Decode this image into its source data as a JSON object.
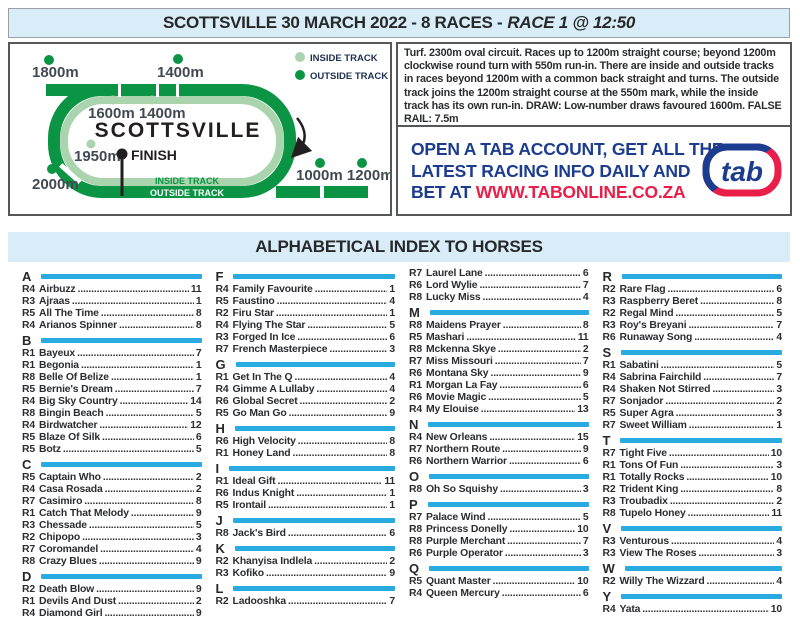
{
  "header": {
    "title_main": "SCOTTSVILLE 30 MARCH 2022 - 8 RACES -",
    "title_race": "RACE 1 @ 12:50"
  },
  "track": {
    "name": "SCOTTSVILLE",
    "legend": {
      "inside": "INSIDE TRACK",
      "outside": "OUTSIDE TRACK"
    },
    "labels": {
      "m1800": "1800m",
      "m1400_top": "1400m",
      "inner_pair": "1600m 1400m",
      "m1950": "1950m",
      "finish": "FINISH",
      "m2000": "2000m",
      "bottom_pair": "1000m 1200m",
      "band_inside": "INSIDE TRACK",
      "band_outside": "OUTSIDE TRACK"
    },
    "colors": {
      "dark_green": "#0b9444",
      "light_green": "#aad4ae"
    }
  },
  "course_info": "Turf. 2300m oval circuit. Races up to 1200m straight course; beyond 1200m clockwise round turn with 550m run-in. There are inside and outside tracks in races beyond 1200m with a common back straight and turns. The outside track joins the 1200m straight course at the 550m mark, while the inside track has its own run-in. DRAW: Low-number draws favoured 1600m. FALSE RAIL: 7.5m",
  "ad": {
    "line1": "OPEN A TAB ACCOUNT, GET ALL THE",
    "line2": "LATEST RACING INFO DAILY AND",
    "line3_prefix": "BET AT ",
    "line3_url": "WWW.TABONLINE.CO.ZA",
    "logo_text": "tab",
    "navy": "#1b3c8f",
    "red": "#e91f49"
  },
  "index": {
    "title": "ALPHABETICAL INDEX TO HORSES",
    "bar_color": "#29abe2",
    "columns": [
      [
        {
          "letter": "A",
          "entries": [
            [
              "R4",
              "Airbuzz",
              "11"
            ],
            [
              "R3",
              "Ajraas",
              "1"
            ],
            [
              "R5",
              "All The Time",
              "8"
            ],
            [
              "R4",
              "Arianos Spinner",
              "8"
            ]
          ]
        },
        {
          "letter": "B",
          "entries": [
            [
              "R1",
              "Bayeux",
              "7"
            ],
            [
              "R1",
              "Begonia",
              "1"
            ],
            [
              "R8",
              "Belle Of Belize",
              "1"
            ],
            [
              "R5",
              "Bernie's Dream",
              "7"
            ],
            [
              "R4",
              "Big Sky Country",
              "14"
            ],
            [
              "R8",
              "Bingin Beach",
              "5"
            ],
            [
              "R4",
              "Birdwatcher",
              "12"
            ],
            [
              "R5",
              "Blaze Of Silk",
              "6"
            ],
            [
              "R5",
              "Botz",
              "5"
            ]
          ]
        },
        {
          "letter": "C",
          "entries": [
            [
              "R5",
              "Captain Who",
              "2"
            ],
            [
              "R4",
              "Casa Rosada",
              "2"
            ],
            [
              "R7",
              "Casimiro",
              "8"
            ],
            [
              "R1",
              "Catch That Melody",
              "9"
            ],
            [
              "R3",
              "Chessade",
              "5"
            ],
            [
              "R2",
              "Chipopo",
              "3"
            ],
            [
              "R7",
              "Coromandel",
              "4"
            ],
            [
              "R8",
              "Crazy Blues",
              "9"
            ]
          ]
        },
        {
          "letter": "D",
          "entries": [
            [
              "R2",
              "Death Blow",
              "9"
            ],
            [
              "R1",
              "Devils And Dust",
              "2"
            ],
            [
              "R4",
              "Diamond Girl",
              "9"
            ]
          ]
        }
      ],
      [
        {
          "letter": "F",
          "entries": [
            [
              "R4",
              "Family Favourite",
              "1"
            ],
            [
              "R5",
              "Faustino",
              "4"
            ],
            [
              "R2",
              "Firu Star",
              "1"
            ],
            [
              "R4",
              "Flying The Star",
              "5"
            ],
            [
              "R3",
              "Forged In Ice",
              "6"
            ],
            [
              "R7",
              "French Masterpiece",
              "3"
            ]
          ]
        },
        {
          "letter": "G",
          "entries": [
            [
              "R1",
              "Get In The Q",
              "4"
            ],
            [
              "R4",
              "Gimme A Lullaby",
              "4"
            ],
            [
              "R6",
              "Global Secret",
              "2"
            ],
            [
              "R5",
              "Go Man Go",
              "9"
            ]
          ]
        },
        {
          "letter": "H",
          "entries": [
            [
              "R6",
              "High Velocity",
              "8"
            ],
            [
              "R1",
              "Honey Land",
              "8"
            ]
          ]
        },
        {
          "letter": "I",
          "entries": [
            [
              "R1",
              "Ideal Gift",
              "11"
            ],
            [
              "R6",
              "Indus Knight",
              "1"
            ],
            [
              "R5",
              "Irontail",
              "1"
            ]
          ]
        },
        {
          "letter": "J",
          "entries": [
            [
              "R8",
              "Jack's Bird",
              "6"
            ]
          ]
        },
        {
          "letter": "K",
          "entries": [
            [
              "R2",
              "Khanyisa Indlela",
              "2"
            ],
            [
              "R3",
              "Kofiko",
              "9"
            ]
          ]
        },
        {
          "letter": "L",
          "entries": [
            [
              "R2",
              "Ladooshka",
              "7"
            ]
          ]
        }
      ],
      [
        {
          "letter": "",
          "entries": [
            [
              "R7",
              "Laurel Lane",
              "6"
            ],
            [
              "R6",
              "Lord Wylie",
              "7"
            ],
            [
              "R8",
              "Lucky Miss",
              "4"
            ]
          ]
        },
        {
          "letter": "M",
          "entries": [
            [
              "R8",
              "Maidens Prayer",
              "8"
            ],
            [
              "R5",
              "Mashari",
              "11"
            ],
            [
              "R8",
              "Mckenna Skye",
              "2"
            ],
            [
              "R7",
              "Miss Missouri",
              "7"
            ],
            [
              "R6",
              "Montana Sky",
              "9"
            ],
            [
              "R1",
              "Morgan La Fay",
              "6"
            ],
            [
              "R6",
              "Movie Magic",
              "5"
            ],
            [
              "R4",
              "My Elouise",
              "13"
            ]
          ]
        },
        {
          "letter": "N",
          "entries": [
            [
              "R4",
              "New Orleans",
              "15"
            ],
            [
              "R7",
              "Northern Route",
              "9"
            ],
            [
              "R6",
              "Northern Warrior",
              "6"
            ]
          ]
        },
        {
          "letter": "O",
          "entries": [
            [
              "R8",
              "Oh So Squishy",
              "3"
            ]
          ]
        },
        {
          "letter": "P",
          "entries": [
            [
              "R7",
              "Palace Wind",
              "5"
            ],
            [
              "R8",
              "Princess Donelly",
              "10"
            ],
            [
              "R8",
              "Purple Merchant",
              "7"
            ],
            [
              "R6",
              "Purple Operator",
              "3"
            ]
          ]
        },
        {
          "letter": "Q",
          "entries": [
            [
              "R5",
              "Quant Master",
              "10"
            ],
            [
              "R4",
              "Queen Mercury",
              "6"
            ]
          ]
        }
      ],
      [
        {
          "letter": "R",
          "entries": [
            [
              "R2",
              "Rare Flag",
              "6"
            ],
            [
              "R3",
              "Raspberry Beret",
              "8"
            ],
            [
              "R2",
              "Regal Mind",
              "5"
            ],
            [
              "R3",
              "Roy's Breyani",
              "7"
            ],
            [
              "R6",
              "Runaway Song",
              "4"
            ]
          ]
        },
        {
          "letter": "S",
          "entries": [
            [
              "R1",
              "Sabatini",
              "5"
            ],
            [
              "R4",
              "Sabrina Fairchild",
              "7"
            ],
            [
              "R4",
              "Shaken Not Stirred",
              "3"
            ],
            [
              "R7",
              "Sonjador",
              "2"
            ],
            [
              "R5",
              "Super Agra",
              "3"
            ],
            [
              "R7",
              "Sweet William",
              "1"
            ]
          ]
        },
        {
          "letter": "T",
          "entries": [
            [
              "R7",
              "Tight Five",
              "10"
            ],
            [
              "R1",
              "Tons Of Fun",
              "3"
            ],
            [
              "R1",
              "Totally Rocks",
              "10"
            ],
            [
              "R2",
              "Trident King",
              "8"
            ],
            [
              "R3",
              "Troubadix",
              "2"
            ],
            [
              "R8",
              "Tupelo Honey",
              "11"
            ]
          ]
        },
        {
          "letter": "V",
          "entries": [
            [
              "R3",
              "Venturous",
              "4"
            ],
            [
              "R3",
              "View The Roses",
              "3"
            ]
          ]
        },
        {
          "letter": "W",
          "entries": [
            [
              "R2",
              "Willy The Wizzard",
              "4"
            ]
          ]
        },
        {
          "letter": "Y",
          "entries": [
            [
              "R4",
              "Yata",
              "10"
            ]
          ]
        }
      ]
    ]
  }
}
